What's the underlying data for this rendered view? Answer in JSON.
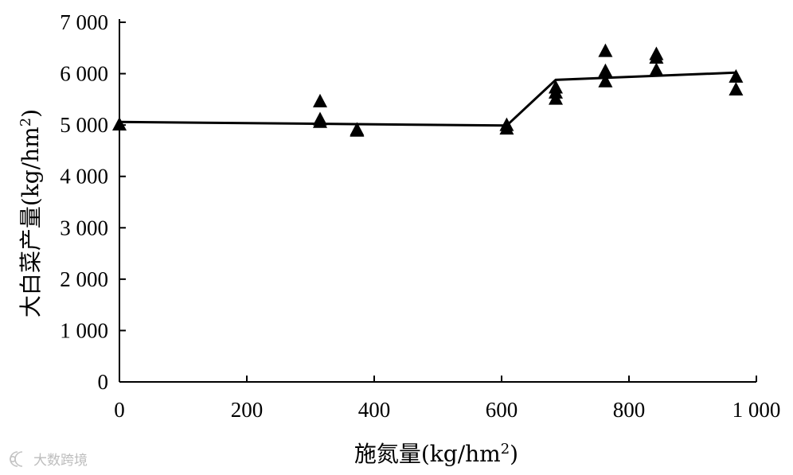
{
  "chart_data": {
    "type": "scatter",
    "xlabel": "施氮量(kg/hm",
    "xlabel_sup": "2",
    "xlabel_end": ")",
    "ylabel": "大白菜产量(kg/hm",
    "ylabel_sup": "2",
    "ylabel_end": ")",
    "xlim": [
      0,
      1000
    ],
    "ylim": [
      0,
      7000
    ],
    "x_ticks": [
      0,
      200,
      400,
      600,
      800,
      1000
    ],
    "x_tick_labels": [
      "0",
      "200",
      "400",
      "600",
      "800",
      "1 000"
    ],
    "y_ticks": [
      0,
      1000,
      2000,
      3000,
      4000,
      5000,
      6000,
      7000
    ],
    "y_tick_labels": [
      "0",
      "1 000",
      "2 000",
      "3 000",
      "4 000",
      "5 000",
      "6 000",
      "7 000"
    ],
    "grid": false,
    "marker": "triangle",
    "color": "#000000",
    "points": [
      {
        "x": 0,
        "y": 5000
      },
      {
        "x": 315,
        "y": 5450
      },
      {
        "x": 315,
        "y": 5100
      },
      {
        "x": 315,
        "y": 5050
      },
      {
        "x": 373,
        "y": 4900
      },
      {
        "x": 373,
        "y": 4880
      },
      {
        "x": 608,
        "y": 4990
      },
      {
        "x": 608,
        "y": 4920
      },
      {
        "x": 685,
        "y": 5720
      },
      {
        "x": 685,
        "y": 5620
      },
      {
        "x": 685,
        "y": 5500
      },
      {
        "x": 763,
        "y": 6430
      },
      {
        "x": 763,
        "y": 6040
      },
      {
        "x": 763,
        "y": 5840
      },
      {
        "x": 843,
        "y": 6370
      },
      {
        "x": 843,
        "y": 6300
      },
      {
        "x": 843,
        "y": 6060
      },
      {
        "x": 968,
        "y": 5930
      },
      {
        "x": 968,
        "y": 5680
      }
    ],
    "fit_line": {
      "x": [
        0,
        608,
        685,
        968
      ],
      "y": [
        5060,
        4990,
        5880,
        6020
      ]
    }
  },
  "watermark": {
    "text": "大数跨境"
  }
}
